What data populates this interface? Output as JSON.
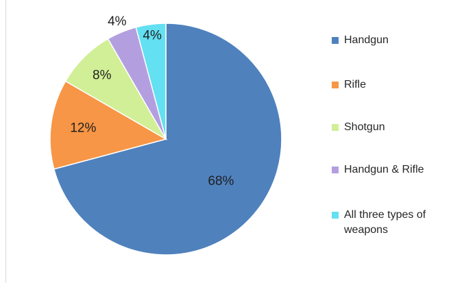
{
  "chart_data": {
    "type": "pie",
    "title": "",
    "categories": [
      "Handgun",
      "Rifle",
      "Shotgun",
      "Handgun & Rifle",
      "All three types of weapons"
    ],
    "values": [
      68,
      12,
      8,
      4,
      4
    ],
    "value_labels": [
      "68%",
      "12%",
      "8%",
      "4%",
      "4%"
    ],
    "unit": "%",
    "colors": [
      "#4f81bd",
      "#f79646",
      "#d1ef96",
      "#b39fe0",
      "#63e0f2"
    ],
    "legend": {
      "placement": "right",
      "items": [
        {
          "label": "Handgun",
          "color": "#4f81bd"
        },
        {
          "label": "Rifle",
          "color": "#f79646"
        },
        {
          "label": "Shotgun",
          "color": "#d1ef96"
        },
        {
          "label": "Handgun & Rifle",
          "color": "#b39fe0"
        },
        {
          "label": "All three types of weapons",
          "color": "#63e0f2"
        }
      ]
    },
    "start_angle_deg": 0,
    "direction": "clockwise"
  }
}
